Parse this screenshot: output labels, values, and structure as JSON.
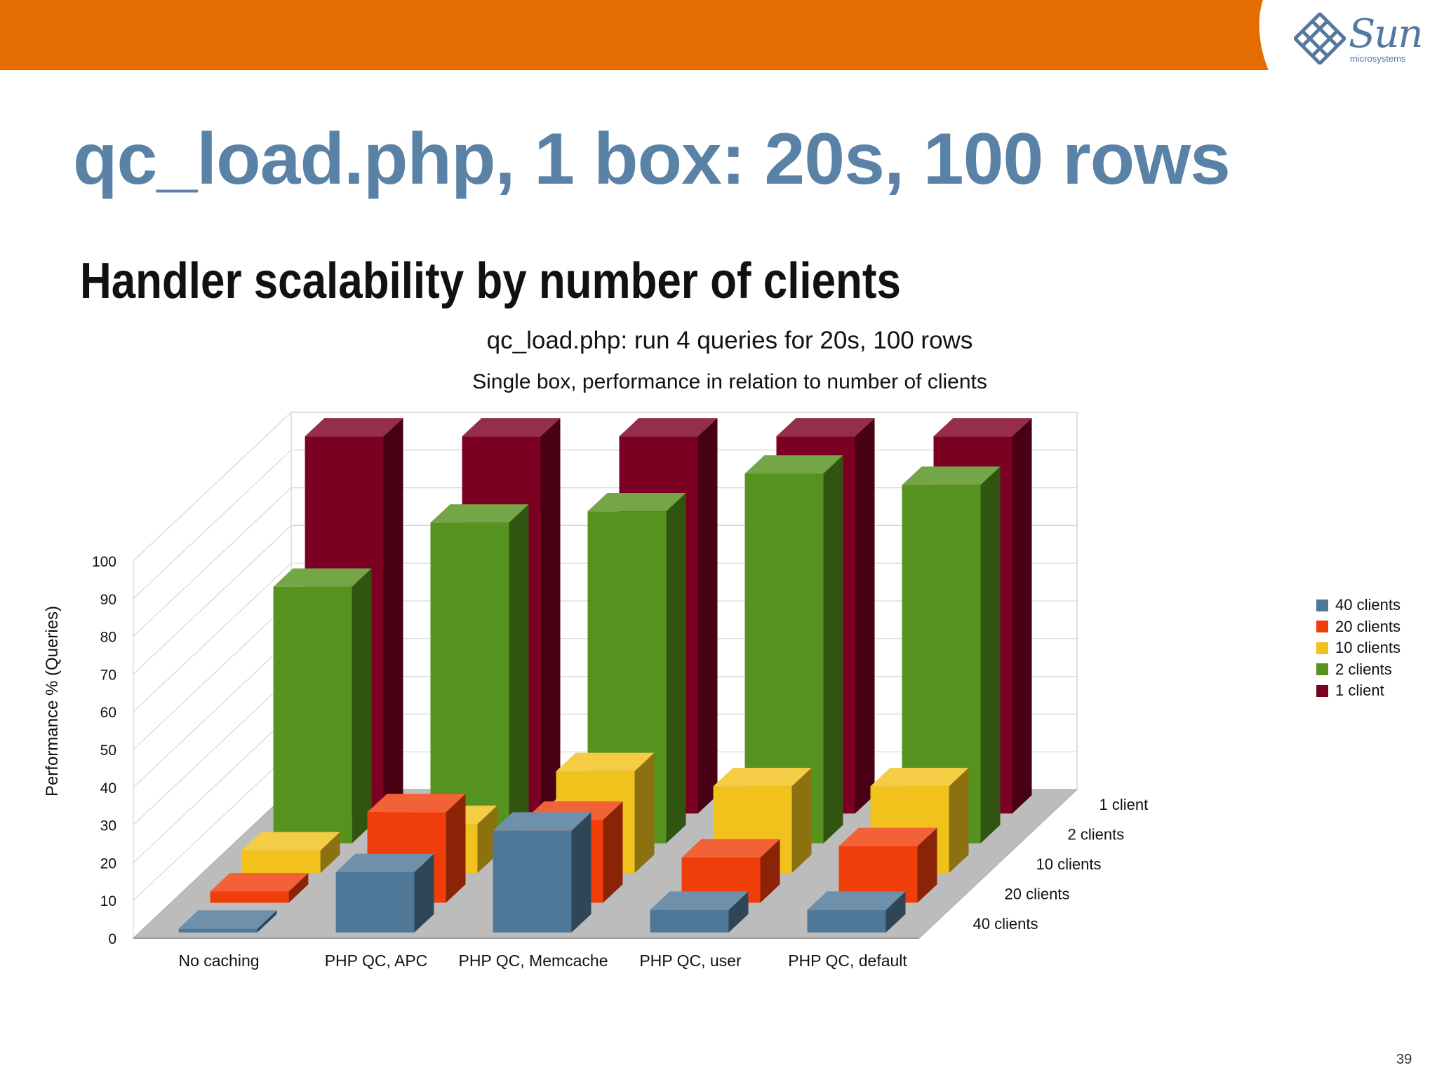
{
  "slide": {
    "title": "qc_load.php, 1 box: 20s, 100 rows",
    "subtitle": "Handler scalability by number of clients",
    "page_number": "39"
  },
  "logo": {
    "word": "Sun",
    "sub": "microsystems"
  },
  "colors": {
    "topbar": "#e46c00",
    "title": "#5a82a6"
  },
  "chart_data": {
    "type": "bar",
    "title": "qc_load.php: run 4 queries for 20s, 100 rows",
    "subtitle": "Single box, performance in relation to number of clients",
    "ylabel": "Performance % (Queries)",
    "xlabel": "",
    "ylim": [
      0,
      100
    ],
    "yticks": [
      0,
      10,
      20,
      30,
      40,
      50,
      60,
      70,
      80,
      90,
      100
    ],
    "grid": true,
    "legend_position": "right",
    "categories": [
      "No caching",
      "PHP QC, APC",
      "PHP QC, Memcache",
      "PHP QC, user",
      "PHP QC, default"
    ],
    "depth_labels": [
      "40 clients",
      "20 clients",
      "10 clients",
      "2 clients",
      "1 client"
    ],
    "series": [
      {
        "name": "40 clients",
        "color": "#4f7898",
        "values": [
          1,
          16,
          27,
          6,
          6
        ]
      },
      {
        "name": "20 clients",
        "color": "#f03e0a",
        "values": [
          3,
          24,
          22,
          12,
          15
        ]
      },
      {
        "name": "10 clients",
        "color": "#f2c21c",
        "values": [
          6,
          13,
          27,
          23,
          23
        ]
      },
      {
        "name": "2 clients",
        "color": "#55921e",
        "values": [
          68,
          85,
          88,
          98,
          95
        ]
      },
      {
        "name": "1 client",
        "color": "#7c0022",
        "values": [
          100,
          100,
          100,
          100,
          100
        ]
      }
    ]
  }
}
